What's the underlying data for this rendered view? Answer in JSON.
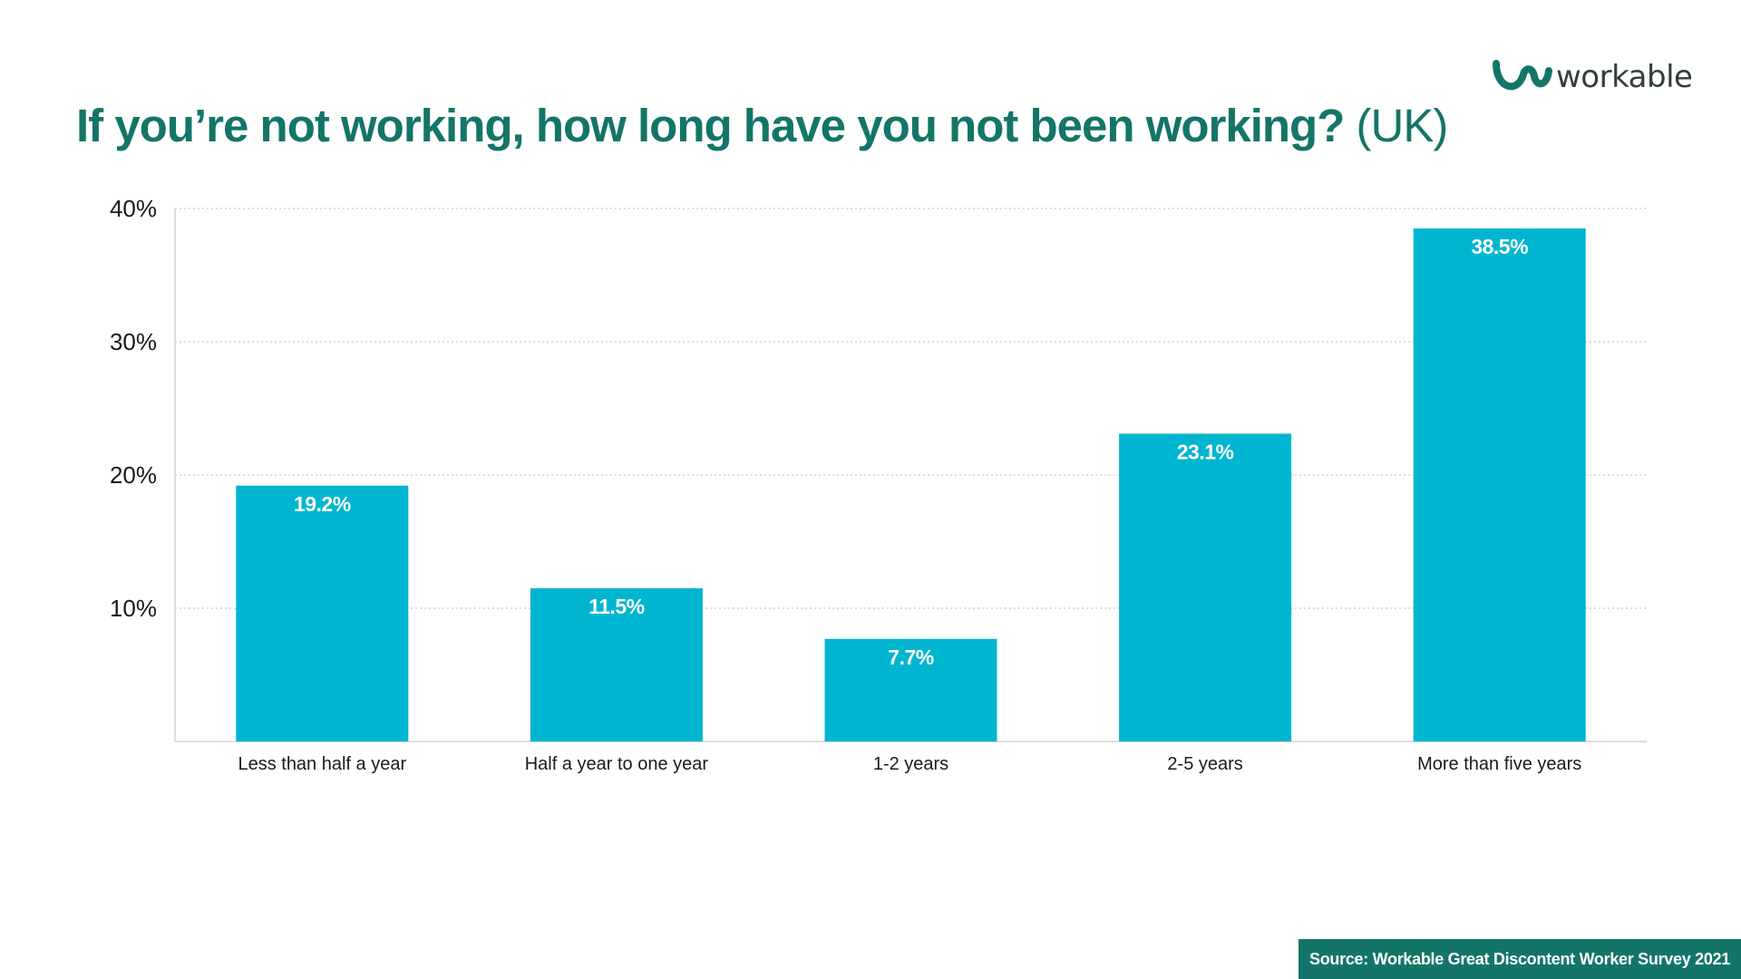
{
  "header": {
    "title_main": "If you’re not working, how long have you not been working?",
    "title_suffix": "(UK)"
  },
  "logo": {
    "text": "workable",
    "icon": "workable-logo-mark"
  },
  "footer": {
    "source": "Source: Workable Great Discontent Worker Survey 2021"
  },
  "colors": {
    "bar": "#00b5cf",
    "title": "#137568",
    "source_bg": "#137568",
    "gridline": "#c9c9c9",
    "axis": "#d4d4d4"
  },
  "chart_data": {
    "type": "bar",
    "categories": [
      "Less than half a year",
      "Half a year to one year",
      "1-2 years",
      "2-5 years",
      "More than five years"
    ],
    "values": [
      19.2,
      11.5,
      7.7,
      23.1,
      38.5
    ],
    "value_labels": [
      "19.2%",
      "11.5%",
      "7.7%",
      "23.1%",
      "38.5%"
    ],
    "yticks": [
      10,
      20,
      30,
      40
    ],
    "ytick_labels": [
      "10%",
      "20%",
      "30%",
      "40%"
    ],
    "ylim": [
      0,
      40
    ],
    "grid": true,
    "grid_style": "dotted",
    "title": "If you’re not working, how long have you not been working? (UK)",
    "xlabel": "",
    "ylabel": ""
  }
}
